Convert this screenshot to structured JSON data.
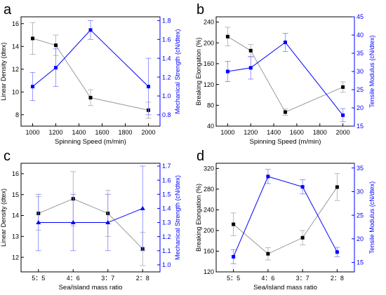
{
  "colors": {
    "left_series": "#000000",
    "right_series": "#0000ff",
    "left_line": "#999999",
    "right_line": "#0000ff",
    "left_err": "#aaaaaa",
    "right_err": "#8080ff",
    "axis": "#000000",
    "right_axis": "#0000ff"
  },
  "chart_data": [
    {
      "panel": "a",
      "type": "line",
      "xlabel": "Spinning Speed (m/min)",
      "x_type": "numeric",
      "x": [
        1000,
        1200,
        1500,
        2000
      ],
      "xlim": [
        900,
        2100
      ],
      "xticks": [
        1000,
        1200,
        1400,
        1600,
        1800,
        2000
      ],
      "xtick_labels": [
        "1000",
        "1200",
        "1400",
        "1600",
        "1800",
        "2000"
      ],
      "grid": false,
      "left_axis": {
        "label": "Linear Density (dtex)",
        "ylim": [
          7,
          16.6
        ],
        "ticks": [
          8,
          10,
          12,
          14,
          16
        ],
        "tick_labels": [
          "8",
          "10",
          "12",
          "14",
          "16"
        ]
      },
      "right_axis": {
        "label": "Mechanical Strength (cN/dtex)",
        "ylim": [
          0.68,
          1.84
        ],
        "ticks": [
          0.8,
          1.0,
          1.2,
          1.4,
          1.6,
          1.8
        ],
        "tick_labels": [
          "0.8",
          "1.0",
          "1.2",
          "1.4",
          "1.6",
          "1.8"
        ]
      },
      "series": [
        {
          "axis": "left",
          "marker": "square",
          "values": [
            14.7,
            14.1,
            9.5,
            8.4
          ],
          "err": [
            1.4,
            0.9,
            0.7,
            0.7
          ]
        },
        {
          "axis": "right",
          "marker": "square",
          "values": [
            1.1,
            1.3,
            1.7,
            1.1
          ],
          "err": [
            0.15,
            0.2,
            0.1,
            0.3
          ]
        }
      ]
    },
    {
      "panel": "b",
      "type": "line",
      "xlabel": "Spinning Speed (m/min)",
      "x_type": "numeric",
      "x": [
        1000,
        1200,
        1500,
        2000
      ],
      "xlim": [
        900,
        2100
      ],
      "xticks": [
        1000,
        1200,
        1400,
        1600,
        1800,
        2000
      ],
      "xtick_labels": [
        "1000",
        "1200",
        "1400",
        "1600",
        "1800",
        "2000"
      ],
      "grid": false,
      "left_axis": {
        "label": "Breaking Elongation (%)",
        "ylim": [
          40,
          250
        ],
        "ticks": [
          40,
          80,
          120,
          160,
          200,
          240
        ],
        "tick_labels": [
          "40",
          "80",
          "120",
          "160",
          "200",
          "240"
        ]
      },
      "right_axis": {
        "label": "Tensile Modulus (cN/dtex)",
        "ylim": [
          15,
          45
        ],
        "ticks": [
          15,
          20,
          25,
          30,
          35,
          40,
          45
        ],
        "tick_labels": [
          "15",
          "20",
          "25",
          "30",
          "35",
          "40",
          "45"
        ]
      },
      "series": [
        {
          "axis": "left",
          "marker": "square",
          "values": [
            212,
            185,
            67,
            115
          ],
          "err": [
            18,
            12,
            6,
            10
          ]
        },
        {
          "axis": "right",
          "marker": "square",
          "values": [
            30,
            31,
            38,
            18
          ],
          "err": [
            2.8,
            3.1,
            2.5,
            1.8
          ]
        }
      ]
    },
    {
      "panel": "c",
      "type": "line",
      "xlabel": "Sea/island mass ratio",
      "x_type": "category",
      "categories": [
        "5：5",
        "4：6",
        "3：7",
        "2：8"
      ],
      "grid": false,
      "left_axis": {
        "label": "Linear Density (dtex)",
        "ylim": [
          11.3,
          16.5
        ],
        "ticks": [
          12,
          13,
          14,
          15,
          16
        ],
        "tick_labels": [
          "12",
          "13",
          "14",
          "15",
          "16"
        ]
      },
      "right_axis": {
        "label": "Mechanical Strength (cN/dtex)",
        "ylim": [
          0.95,
          1.72
        ],
        "ticks": [
          1.0,
          1.1,
          1.2,
          1.3,
          1.4,
          1.5,
          1.6,
          1.7
        ],
        "tick_labels": [
          "1.0",
          "1.1",
          "1.2",
          "1.3",
          "1.4",
          "1.5",
          "1.6",
          "1.7"
        ]
      },
      "series": [
        {
          "axis": "left",
          "marker": "square",
          "values": [
            14.1,
            14.8,
            14.1,
            12.4
          ],
          "err": [
            0.8,
            1.3,
            1.1,
            0.8
          ]
        },
        {
          "axis": "right",
          "marker": "triangle",
          "values": [
            1.3,
            1.3,
            1.3,
            1.4
          ],
          "err": [
            0.2,
            0.2,
            0.2,
            0.3
          ]
        }
      ]
    },
    {
      "panel": "d",
      "type": "line",
      "xlabel": "Sea/island mass ratio",
      "x_type": "category",
      "categories": [
        "5：5",
        "4：6",
        "3：7",
        "2：8"
      ],
      "grid": false,
      "left_axis": {
        "label": "Breaking Elongation (%)",
        "ylim": [
          120,
          330
        ],
        "ticks": [
          120,
          160,
          200,
          240,
          280,
          320
        ],
        "tick_labels": [
          "120",
          "160",
          "200",
          "240",
          "280",
          "320"
        ]
      },
      "right_axis": {
        "label": "Tensile Modulus (cN/dtex)",
        "ylim": [
          13,
          36
        ],
        "ticks": [
          15,
          20,
          25,
          30,
          35
        ],
        "tick_labels": [
          "15",
          "20",
          "25",
          "30",
          "35"
        ]
      },
      "series": [
        {
          "axis": "left",
          "marker": "square",
          "values": [
            212,
            155,
            186,
            284
          ],
          "err": [
            22,
            12,
            14,
            26
          ]
        },
        {
          "axis": "right",
          "marker": "square",
          "values": [
            16.2,
            33.2,
            31.0,
            17.2
          ],
          "err": [
            1.5,
            1.5,
            1.5,
            1.0
          ]
        }
      ]
    }
  ]
}
